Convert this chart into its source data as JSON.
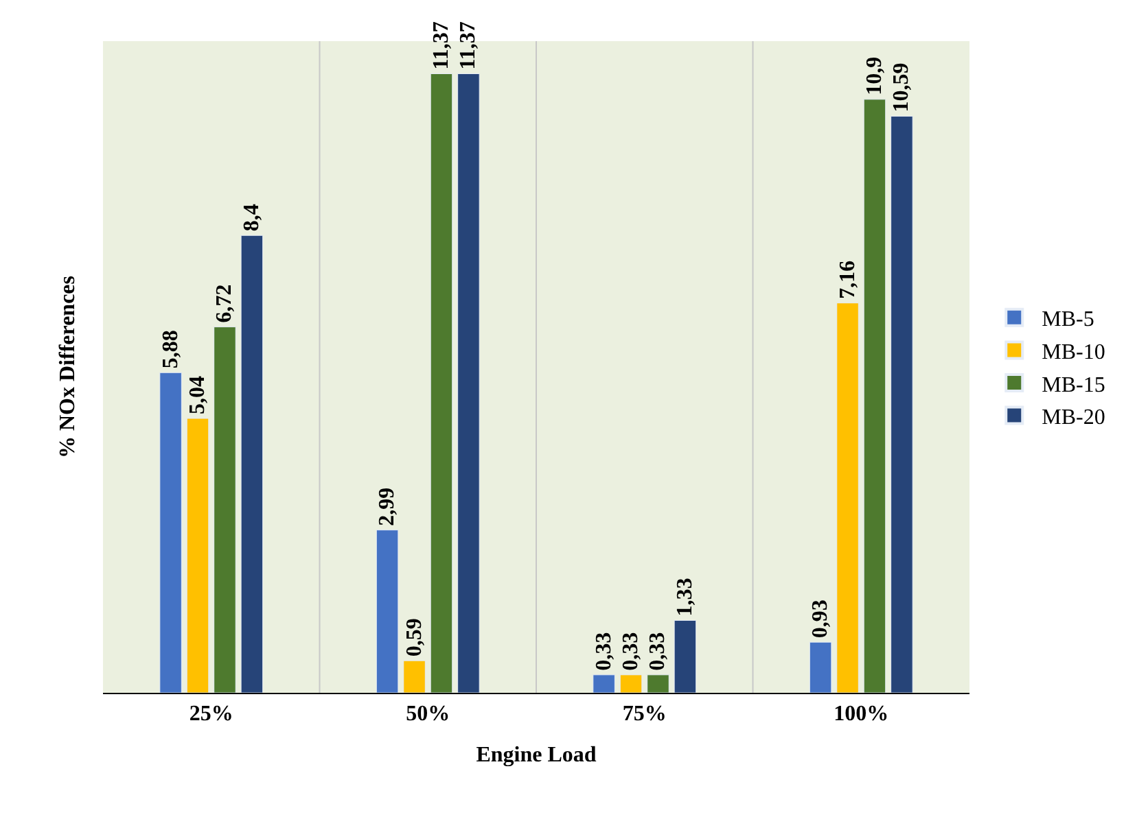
{
  "chart_data": {
    "type": "bar",
    "xlabel": "Engine Load",
    "ylabel": "% NOx Differences",
    "categories": [
      "25%",
      "50%",
      "75%",
      "100%"
    ],
    "series": [
      {
        "name": "MB-5",
        "color": "#4472c4",
        "values": [
          5.88,
          2.99,
          0.33,
          0.93
        ],
        "value_labels": [
          "5,88",
          "2,99",
          "0,33",
          "0,93"
        ]
      },
      {
        "name": "MB-10",
        "color": "#ffc000",
        "values": [
          5.04,
          0.59,
          0.33,
          7.16
        ],
        "value_labels": [
          "5,04",
          "0,59",
          "0,33",
          "7,16"
        ]
      },
      {
        "name": "MB-15",
        "color": "#4e7a2e",
        "values": [
          6.72,
          11.37,
          0.33,
          10.9
        ],
        "value_labels": [
          "6,72",
          "11,37",
          "0,33",
          "10,9"
        ]
      },
      {
        "name": "MB-20",
        "color": "#264478",
        "values": [
          8.4,
          11.37,
          1.33,
          10.59
        ],
        "value_labels": [
          "8,4",
          "11,37",
          "1,33",
          "10,59"
        ]
      }
    ],
    "grid": "x",
    "legend": "right",
    "tick_labels": "x"
  }
}
